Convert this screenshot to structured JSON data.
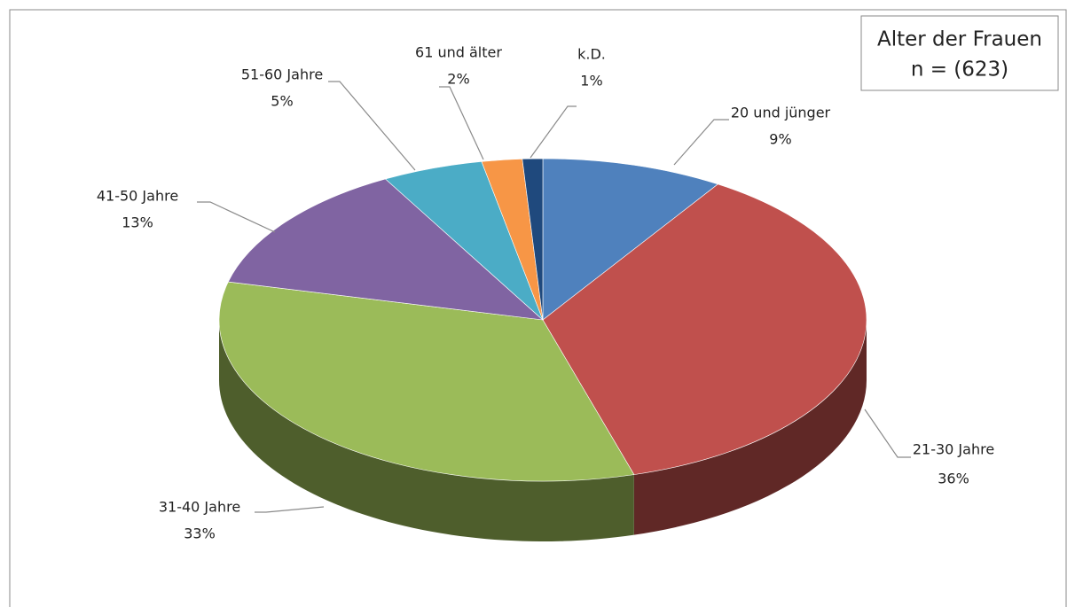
{
  "chart_data": {
    "type": "pie",
    "title": "Alter der Frauen",
    "subtitle": "n = (623)",
    "categories": [
      "20 und jünger",
      "21-30 Jahre",
      "31-40 Jahre",
      "41-50 Jahre",
      "51-60 Jahre",
      "61 und älter",
      "k.D."
    ],
    "values": [
      9,
      36,
      33,
      13,
      5,
      2,
      1
    ],
    "value_labels": [
      "9%",
      "36%",
      "33%",
      "13%",
      "5%",
      "2%",
      "1%"
    ],
    "colors": [
      "#4f81bd",
      "#c0504d",
      "#9bbb59",
      "#8064a2",
      "#4bacc6",
      "#f79646",
      "#1f497d"
    ]
  }
}
